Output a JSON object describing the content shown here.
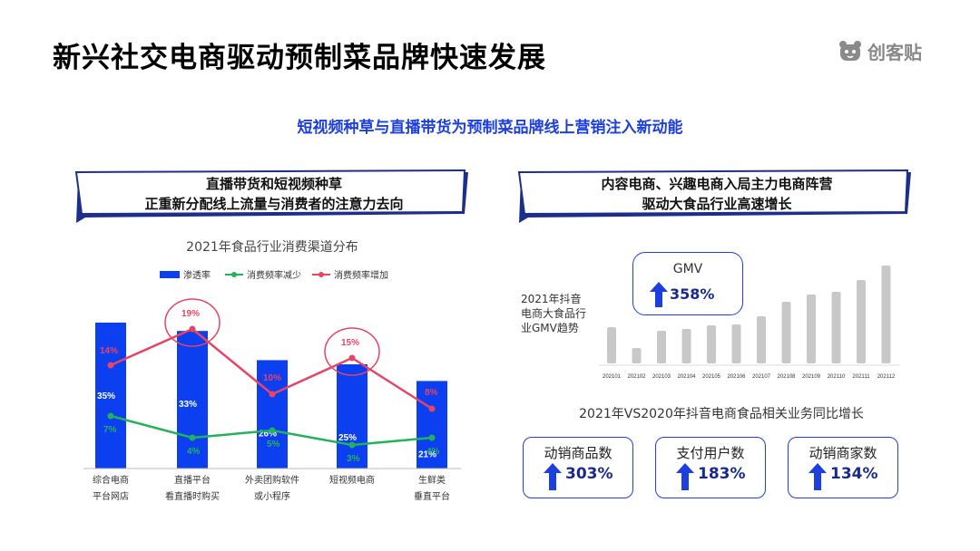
{
  "title": "新兴社交电商驱动预制菜品牌快速发展",
  "logo": {
    "text": "创客贴",
    "icon": "bear-face-icon"
  },
  "subtitle": "短视频种草与直播带货为预制菜品牌线上营销注入新动能",
  "left_callout": {
    "line1": "直播带货和短视频种草",
    "line2": "正重新分配线上流量与消费者的注意力去向"
  },
  "right_callout": {
    "line1": "内容电商、兴趣电商入局主力电商阵营",
    "line2": "驱动大食品行业高速增长"
  },
  "gmv_side_label": [
    "2021年抖音",
    "电商大食品行",
    "业GMV趋势"
  ],
  "gmv_card": {
    "label": "GMV",
    "value": "358%",
    "icon": "up-arrow-icon"
  },
  "yoy_title": "2021年VS2020年抖音电商食品相关业务同比增长",
  "stat_cards": [
    {
      "label": "动销商品数",
      "value": "303%",
      "icon": "up-arrow-icon"
    },
    {
      "label": "支付用户数",
      "value": "183%",
      "icon": "up-arrow-icon"
    },
    {
      "label": "动销商家数",
      "value": "134%",
      "icon": "up-arrow-icon"
    }
  ],
  "colors": {
    "accent_blue": "#1d3fe0",
    "bar_blue": "#0b3ff0",
    "line_red": "#e84466",
    "line_green": "#22b35a",
    "gmv_bar_gray": "#c8c8c8"
  },
  "chart_data": [
    {
      "type": "bar",
      "title": "2021年食品行业消费渠道分布",
      "categories": [
        [
          "综合电商",
          "平台网店"
        ],
        [
          "直播平台",
          "看直播时购买"
        ],
        [
          "外卖团购软件",
          "或小程序"
        ],
        [
          "短视频电商"
        ],
        [
          "生鲜类",
          "垂直平台"
        ]
      ],
      "series": [
        {
          "name": "渗透率",
          "kind": "bar",
          "values": [
            35,
            33,
            26,
            25,
            21
          ],
          "labels": [
            "35%",
            "33%",
            "26%",
            "25%",
            "21%"
          ]
        },
        {
          "name": "消费频率减少",
          "kind": "line",
          "values": [
            7,
            4,
            5,
            3,
            4
          ],
          "labels": [
            "7%",
            "4%",
            "5%",
            "3%",
            "4%"
          ]
        },
        {
          "name": "消费频率增加",
          "kind": "line",
          "values": [
            14,
            19,
            10,
            15,
            8
          ],
          "labels": [
            "14%",
            "19%",
            "10%",
            "15%",
            "8%"
          ]
        }
      ],
      "highlighted_categories": [
        1,
        3
      ],
      "legend": "top"
    },
    {
      "type": "bar",
      "x": [
        "202101",
        "202102",
        "202103",
        "202104",
        "202105",
        "202106",
        "202107",
        "202108",
        "202109",
        "202110",
        "202111",
        "202112"
      ],
      "values": [
        40,
        17,
        36,
        38,
        42,
        43,
        52,
        68,
        76,
        79,
        92,
        108
      ]
    }
  ]
}
